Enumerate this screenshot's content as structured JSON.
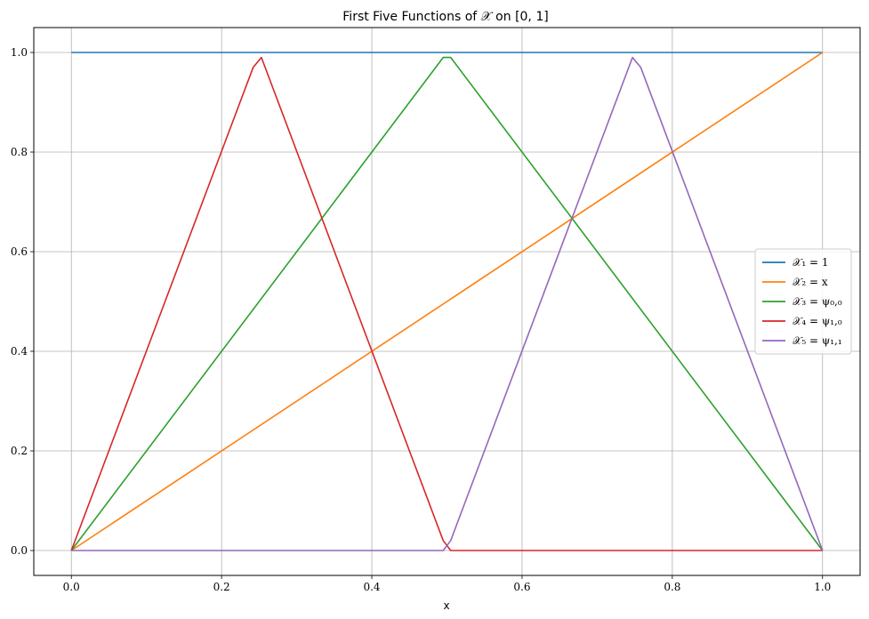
{
  "chart_data": {
    "type": "line",
    "title": "First Five Functions of 𝒳 on [0, 1]",
    "xlabel": "x",
    "ylabel": "",
    "xlim": [
      -0.05,
      1.05
    ],
    "ylim": [
      -0.05,
      1.05
    ],
    "xticks": [
      0.0,
      0.2,
      0.4,
      0.6,
      0.8,
      1.0
    ],
    "yticks": [
      0.0,
      0.2,
      0.4,
      0.6,
      0.8,
      1.0
    ],
    "xtick_labels": [
      "0.0",
      "0.2",
      "0.4",
      "0.6",
      "0.8",
      "1.0"
    ],
    "ytick_labels": [
      "0.0",
      "0.2",
      "0.4",
      "0.6",
      "0.8",
      "1.0"
    ],
    "grid": true,
    "legend_position": "center-right",
    "series": [
      {
        "name": "𝒳₁ = 1",
        "color": "#1f77b4",
        "x": [
          0.0,
          1.0
        ],
        "y": [
          1.0,
          1.0
        ]
      },
      {
        "name": "𝒳₂ = x",
        "color": "#ff7f0e",
        "x": [
          0.0,
          1.0
        ],
        "y": [
          0.0,
          1.0
        ]
      },
      {
        "name": "𝒳₃ = ψ₀,₀",
        "color": "#2ca02c",
        "x": [
          0.0,
          0.495,
          0.505,
          1.0
        ],
        "y": [
          0.0,
          0.99,
          0.99,
          0.0
        ]
      },
      {
        "name": "𝒳₄ = ψ₁,₀",
        "color": "#d62728",
        "x": [
          0.0,
          0.242,
          0.253,
          0.495,
          0.505,
          1.0
        ],
        "y": [
          0.0,
          0.97,
          0.99,
          0.02,
          0.0,
          0.0
        ]
      },
      {
        "name": "𝒳₅ = ψ₁,₁",
        "color": "#9467bd",
        "x": [
          0.0,
          0.495,
          0.505,
          0.747,
          0.758,
          1.0
        ],
        "y": [
          0.0,
          0.0,
          0.02,
          0.99,
          0.97,
          0.0
        ]
      }
    ]
  }
}
